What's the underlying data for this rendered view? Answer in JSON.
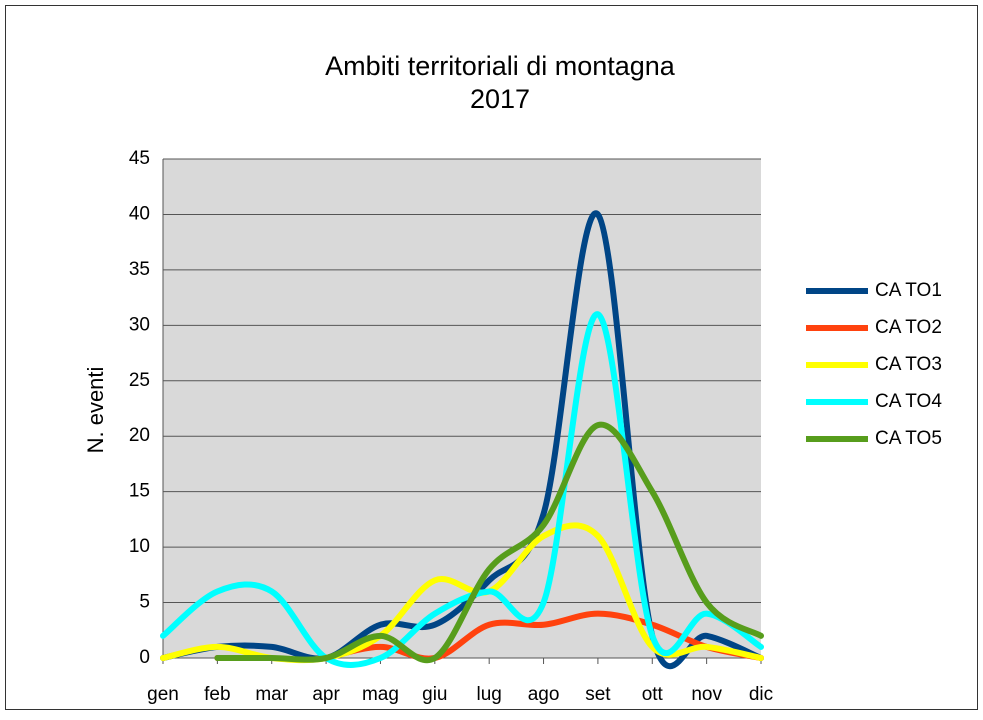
{
  "chart_data": {
    "type": "line",
    "title": "Ambiti territoriali di montagna",
    "subtitle": "2017",
    "y_label": "N. eventi",
    "categories": [
      "gen",
      "feb",
      "mar",
      "apr",
      "mag",
      "giu",
      "lug",
      "ago",
      "set",
      "ott",
      "nov",
      "dic"
    ],
    "series": [
      {
        "name": "CA TO1",
        "color": "#004586",
        "values": [
          0,
          1,
          1,
          0,
          3,
          3,
          7,
          13,
          40,
          2,
          2,
          0
        ]
      },
      {
        "name": "CA TO2",
        "color": "#ff420e",
        "values": [
          null,
          0,
          null,
          0,
          1,
          0,
          3,
          3,
          4,
          3,
          1,
          0
        ]
      },
      {
        "name": "CA TO3",
        "color": "#ffff00",
        "values": [
          0,
          1,
          0,
          0,
          2,
          7,
          6,
          11,
          11,
          1,
          1,
          0
        ]
      },
      {
        "name": "CA TO4",
        "color": "#00ffff",
        "values": [
          2,
          6,
          6,
          0,
          0,
          4,
          6,
          5,
          31,
          2,
          4,
          1
        ]
      },
      {
        "name": "CA TO5",
        "color": "#579d1c",
        "values": [
          null,
          0,
          0,
          0,
          2,
          0,
          8,
          12,
          21,
          15,
          5,
          2
        ]
      }
    ],
    "ylim": [
      0,
      45
    ],
    "yticks": [
      0,
      5,
      10,
      15,
      20,
      25,
      30,
      35,
      40,
      45
    ],
    "grid": true,
    "legend": "right"
  }
}
